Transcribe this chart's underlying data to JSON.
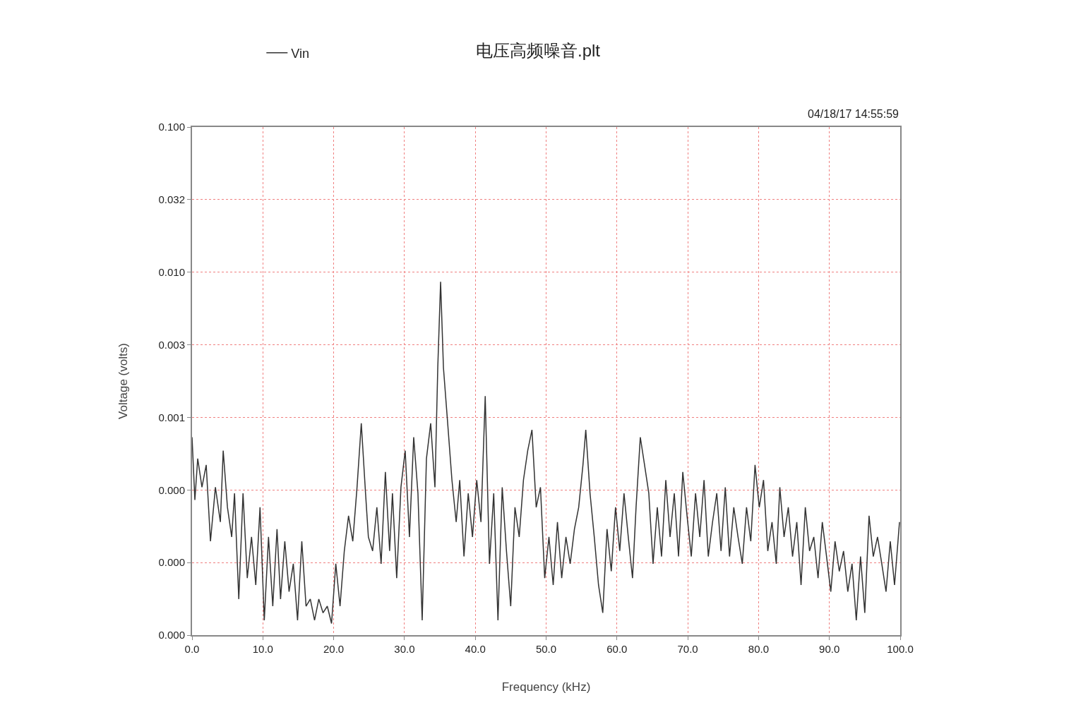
{
  "chart_data": {
    "type": "line",
    "title": "电压高频噪音.plt",
    "xlabel": "Frequency (kHz)",
    "ylabel": "Voltage (volts)",
    "annotations": [
      "04/18/17 14:55:59"
    ],
    "log": "y",
    "grid": true,
    "legend": "top left",
    "marker": "none",
    "line_style": "solid",
    "xlim": [
      0,
      100
    ],
    "xticks": [
      {
        "value": 0,
        "label": "0.0"
      },
      {
        "value": 10,
        "label": "10.0"
      },
      {
        "value": 20,
        "label": "20.0"
      },
      {
        "value": 30,
        "label": "30.0"
      },
      {
        "value": 40,
        "label": "40.0"
      },
      {
        "value": 50,
        "label": "50.0"
      },
      {
        "value": 60,
        "label": "60.0"
      },
      {
        "value": 70,
        "label": "70.0"
      },
      {
        "value": 80,
        "label": "80.0"
      },
      {
        "value": 90,
        "label": "90.0"
      },
      {
        "value": 100,
        "label": "100.0"
      }
    ],
    "ylim": [
      3.16e-05,
      0.1
    ],
    "yticks": [
      {
        "value": 3.16e-05,
        "label": "0.000"
      },
      {
        "value": 0.0001,
        "label": "0.000"
      },
      {
        "value": 0.000316,
        "label": "0.000"
      },
      {
        "value": 0.001,
        "label": "0.001"
      },
      {
        "value": 0.00316,
        "label": "0.003"
      },
      {
        "value": 0.01,
        "label": "0.010"
      },
      {
        "value": 0.0316,
        "label": "0.032"
      },
      {
        "value": 0.1,
        "label": "0.100"
      }
    ],
    "x": [
      0.0,
      0.4,
      0.8,
      1.4,
      2.0,
      2.6,
      3.3,
      4.0,
      4.4,
      5.0,
      5.6,
      6.0,
      6.6,
      7.2,
      7.8,
      8.4,
      9.0,
      9.6,
      10.2,
      10.8,
      11.4,
      12.0,
      12.5,
      13.1,
      13.7,
      14.3,
      14.9,
      15.5,
      16.1,
      16.7,
      17.3,
      17.9,
      18.5,
      19.1,
      19.7,
      20.3,
      20.9,
      21.5,
      22.1,
      22.7,
      23.3,
      23.9,
      24.5,
      24.9,
      25.5,
      26.1,
      26.7,
      27.3,
      27.9,
      28.3,
      28.9,
      29.5,
      30.1,
      30.7,
      31.3,
      31.9,
      32.5,
      33.1,
      33.7,
      34.3,
      34.7,
      35.1,
      35.5,
      36.1,
      36.7,
      37.3,
      37.8,
      38.4,
      39.0,
      39.6,
      40.2,
      40.8,
      41.4,
      42.0,
      42.6,
      43.2,
      43.8,
      44.4,
      45.0,
      45.6,
      46.2,
      46.8,
      47.4,
      48.0,
      48.6,
      49.2,
      49.8,
      50.4,
      51.0,
      51.6,
      52.2,
      52.8,
      53.4,
      54.0,
      54.6,
      55.2,
      55.6,
      56.2,
      56.8,
      57.4,
      58.0,
      58.6,
      59.2,
      59.8,
      60.4,
      61.0,
      61.6,
      62.2,
      62.7,
      63.3,
      63.9,
      64.5,
      65.1,
      65.7,
      66.3,
      66.9,
      67.5,
      68.1,
      68.7,
      69.3,
      69.9,
      70.5,
      71.1,
      71.7,
      72.3,
      72.9,
      73.5,
      74.1,
      74.7,
      75.3,
      75.9,
      76.5,
      77.1,
      77.7,
      78.3,
      78.9,
      79.5,
      80.1,
      80.7,
      81.3,
      81.9,
      82.5,
      83.0,
      83.6,
      84.2,
      84.8,
      85.4,
      86.0,
      86.6,
      87.2,
      87.8,
      88.4,
      89.0,
      89.6,
      90.2,
      90.8,
      91.4,
      92.0,
      92.6,
      93.2,
      93.8,
      94.4,
      95.0,
      95.6,
      96.2,
      96.8,
      97.4,
      98.0,
      98.6,
      99.2,
      99.9
    ],
    "series": [
      {
        "name": "Vin",
        "color": "#333333",
        "values": [
          0.00073,
          0.00027,
          0.00052,
          0.00033,
          0.00047,
          0.00014,
          0.00033,
          0.00019,
          0.00059,
          0.00024,
          0.00015,
          0.0003,
          5.6e-05,
          0.0003,
          7.8e-05,
          0.00015,
          7e-05,
          0.00024,
          4e-05,
          0.00015,
          5e-05,
          0.00017,
          5.6e-05,
          0.00014,
          6.3e-05,
          9.8e-05,
          4e-05,
          0.00014,
          5e-05,
          5.6e-05,
          4e-05,
          5.6e-05,
          4.5e-05,
          5e-05,
          3.8e-05,
          9.8e-05,
          5e-05,
          0.00012,
          0.00021,
          0.00014,
          0.00033,
          0.00091,
          0.0003,
          0.00015,
          0.00012,
          0.00024,
          9.8e-05,
          0.00042,
          0.00012,
          0.0003,
          7.8e-05,
          0.00033,
          0.00059,
          0.00015,
          0.00073,
          0.0003,
          4e-05,
          0.00052,
          0.00091,
          0.00033,
          0.0022,
          0.0086,
          0.0022,
          0.00091,
          0.00037,
          0.00019,
          0.00037,
          0.00011,
          0.0003,
          0.00015,
          0.00037,
          0.00019,
          0.0014,
          9.8e-05,
          0.0003,
          4e-05,
          0.00033,
          0.00012,
          5e-05,
          0.00024,
          0.00015,
          0.00037,
          0.00059,
          0.00082,
          0.00024,
          0.00033,
          7.8e-05,
          0.00015,
          7e-05,
          0.00019,
          7.8e-05,
          0.00015,
          9.8e-05,
          0.00017,
          0.00024,
          0.00047,
          0.00082,
          0.0003,
          0.00015,
          7e-05,
          4.5e-05,
          0.00017,
          8.7e-05,
          0.00024,
          0.00012,
          0.0003,
          0.00015,
          7.8e-05,
          0.00024,
          0.00073,
          0.00047,
          0.0003,
          9.8e-05,
          0.00024,
          0.00011,
          0.00037,
          0.00015,
          0.0003,
          0.00011,
          0.00042,
          0.00021,
          0.00011,
          0.0003,
          0.00015,
          0.00037,
          0.00011,
          0.00019,
          0.0003,
          0.00012,
          0.00033,
          0.00011,
          0.00024,
          0.00015,
          9.8e-05,
          0.00024,
          0.00014,
          0.00047,
          0.00024,
          0.00037,
          0.00012,
          0.00019,
          9.8e-05,
          0.00033,
          0.00015,
          0.00024,
          0.00011,
          0.00019,
          7e-05,
          0.00024,
          0.00012,
          0.00015,
          7.8e-05,
          0.00019,
          0.00011,
          6.3e-05,
          0.00014,
          8.7e-05,
          0.00012,
          6.3e-05,
          9.8e-05,
          4e-05,
          0.00011,
          4.5e-05,
          0.00021,
          0.00011,
          0.00015,
          9.8e-05,
          6.3e-05,
          0.00014,
          7e-05,
          0.00019
        ]
      }
    ]
  }
}
